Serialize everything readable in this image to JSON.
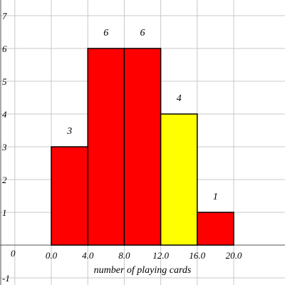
{
  "chart_data": {
    "type": "bar",
    "title": "",
    "xlabel": "number of playing cards",
    "ylabel": "",
    "origin_label": "0",
    "bins": [
      {
        "from": 0,
        "to": 4,
        "value": 3,
        "label": "3",
        "color": "#ff0000"
      },
      {
        "from": 4,
        "to": 8,
        "value": 6,
        "label": "6",
        "color": "#ff0000"
      },
      {
        "from": 8,
        "to": 12,
        "value": 6,
        "label": "6",
        "color": "#ff0000"
      },
      {
        "from": 12,
        "to": 16,
        "value": 4,
        "label": "4",
        "color": "#ffff00"
      },
      {
        "from": 16,
        "to": 20,
        "value": 1,
        "label": "1",
        "color": "#ff0000"
      }
    ],
    "x_ticks": [
      "0.0",
      "4.0",
      "8.0",
      "12.0",
      "16.0",
      "20.0"
    ],
    "y_ticks": [
      "-1",
      "1",
      "2",
      "3",
      "4",
      "5",
      "6",
      "7"
    ],
    "xlim": [
      -14,
      22
    ],
    "ylim": [
      -1.2,
      7.5
    ],
    "grid": true
  }
}
